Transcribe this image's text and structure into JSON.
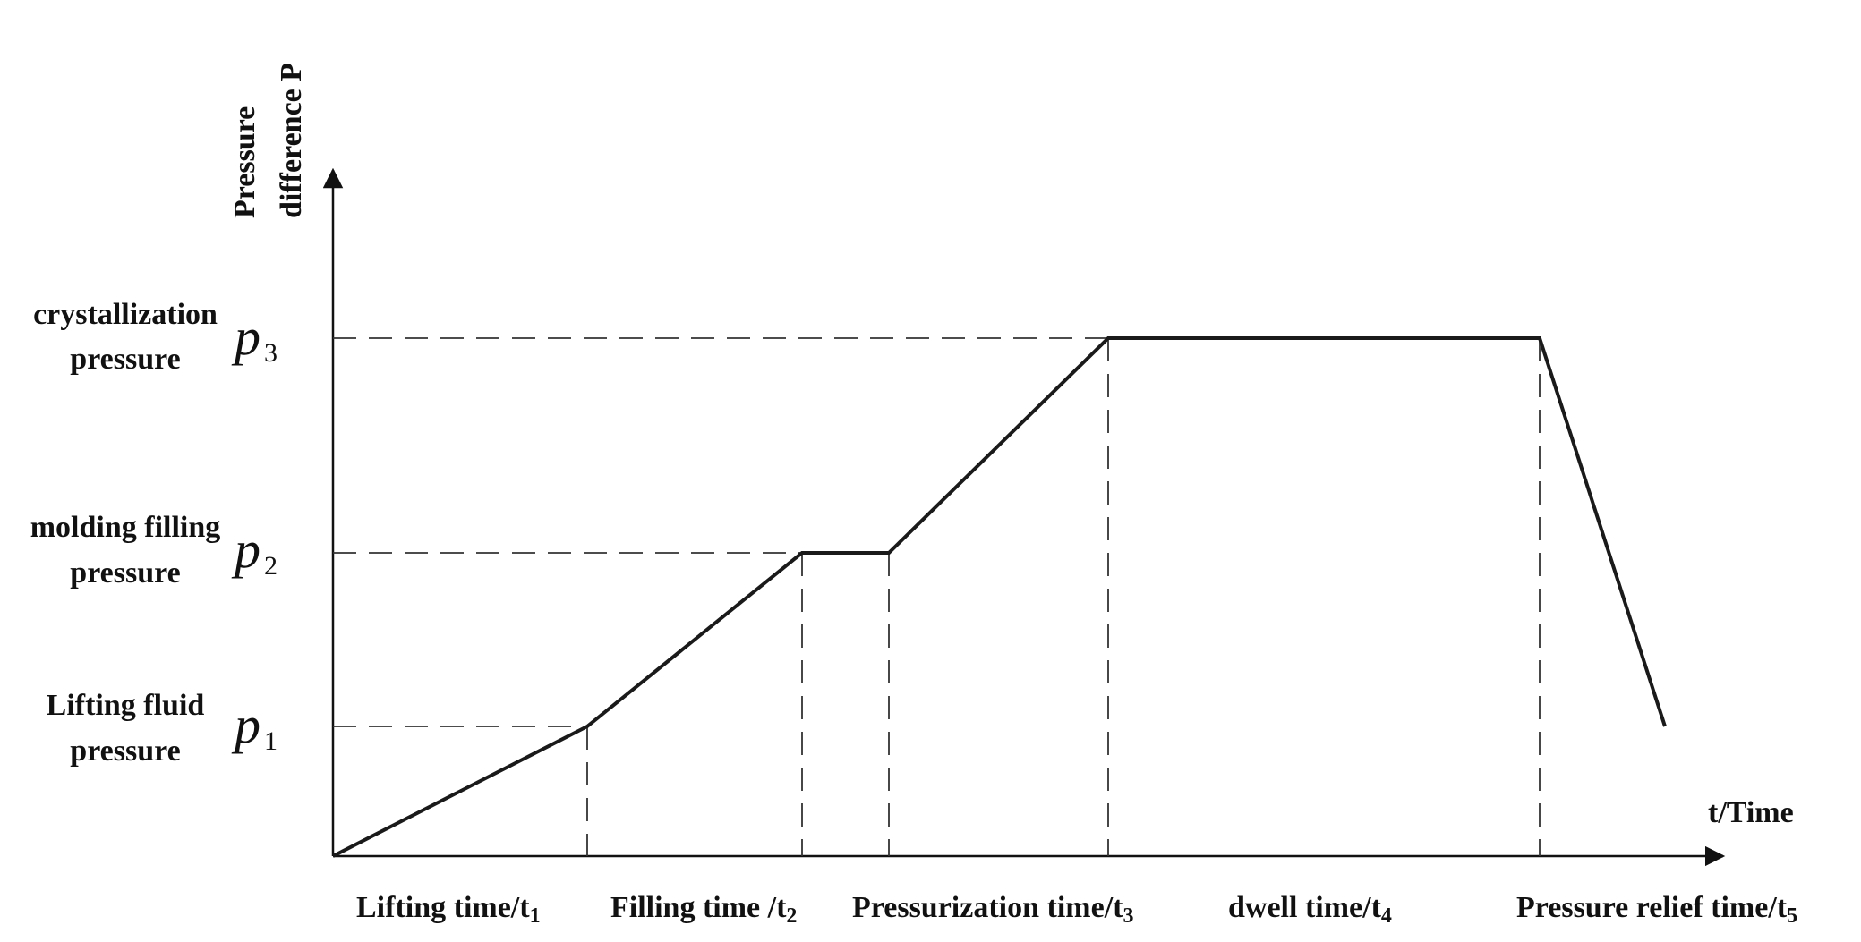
{
  "y_axis": {
    "line1": "Pressure",
    "line2": "difference P"
  },
  "x_axis": {
    "label": "t/Time"
  },
  "levels": [
    {
      "id": "p1",
      "symbol": "p",
      "sub": "1",
      "line1": "Lifting fluid",
      "line2": "pressure"
    },
    {
      "id": "p2",
      "symbol": "p",
      "sub": "2",
      "line1": "molding filling",
      "line2": "pressure"
    },
    {
      "id": "p3",
      "symbol": "p",
      "sub": "3",
      "line1": "crystallization",
      "line2": "pressure"
    }
  ],
  "phases": [
    {
      "main": "Lifting time/t",
      "sub": "1"
    },
    {
      "main": "Filling time /t",
      "sub": "2"
    },
    {
      "main": "Pressurization time/t",
      "sub": "3"
    },
    {
      "main": "dwell time/t",
      "sub": "4"
    },
    {
      "main": "Pressure relief time/t",
      "sub": "5"
    }
  ],
  "colors": {
    "line": "#1a1a1a",
    "dash": "#333333"
  }
}
